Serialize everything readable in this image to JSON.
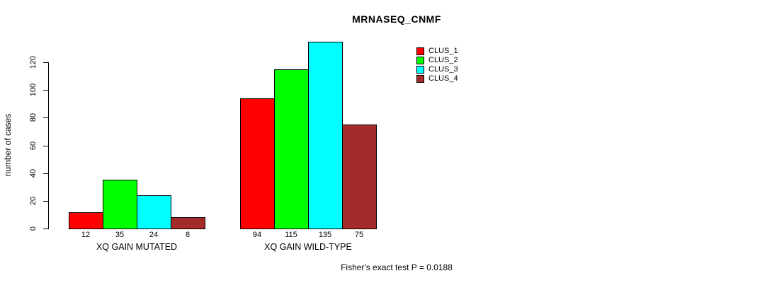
{
  "chart_data": {
    "type": "bar",
    "title": "MRNASEQ_CNMF",
    "xlabel": "",
    "ylabel": "number of cases",
    "categories": [
      "XQ GAIN MUTATED",
      "XQ GAIN WILD-TYPE"
    ],
    "series": [
      {
        "name": "CLUS_1",
        "color": "#FF0000",
        "values": [
          12,
          94
        ]
      },
      {
        "name": "CLUS_2",
        "color": "#00FF00",
        "values": [
          35,
          115
        ]
      },
      {
        "name": "CLUS_3",
        "color": "#00FFFF",
        "values": [
          24,
          135
        ]
      },
      {
        "name": "CLUS_4",
        "color": "#A52A2A",
        "values": [
          8,
          75
        ]
      }
    ],
    "bar_value_labels": [
      [
        "12",
        "35",
        "24",
        "8"
      ],
      [
        "94",
        "115",
        "135",
        "75"
      ]
    ],
    "yticks": [
      0,
      20,
      40,
      60,
      80,
      100,
      120
    ],
    "ylim": [
      0,
      135
    ],
    "grid": false,
    "legend_position": "top-right",
    "annotation": "Fisher's exact test P = 0.0188",
    "text_color": "#000000",
    "background_color": "#FFFFFF"
  }
}
